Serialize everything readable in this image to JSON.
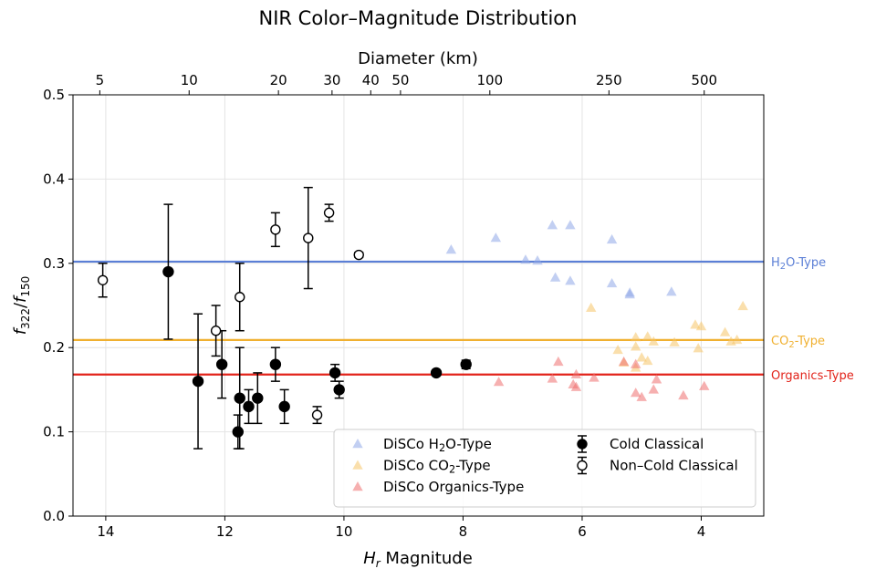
{
  "chart_data": {
    "type": "scatter",
    "title": "NIR Color–Magnitude Distribution",
    "xlabel": "H_r Magnitude",
    "xlabel_parts": {
      "main": "H",
      "sub": "r",
      "rest": " Magnitude"
    },
    "ylabel": "f_322/f_150",
    "ylabel_parts": {
      "f1": "f",
      "s1": "322",
      "slash": "/",
      "f2": "f",
      "s2": "150"
    },
    "secondary_xlabel": "Diameter (km)",
    "xlim": [
      14.55,
      2.95
    ],
    "ylim": [
      0.0,
      0.5
    ],
    "x_inverted": true,
    "grid": true,
    "legend_position": "lower right",
    "x_ticks": [
      {
        "value": 14,
        "label": "14"
      },
      {
        "value": 12,
        "label": "12"
      },
      {
        "value": 10,
        "label": "10"
      },
      {
        "value": 8,
        "label": "8"
      },
      {
        "value": 6,
        "label": "6"
      },
      {
        "value": 4,
        "label": "4"
      }
    ],
    "y_ticks": [
      {
        "value": 0.0,
        "label": "0.0"
      },
      {
        "value": 0.1,
        "label": "0.1"
      },
      {
        "value": 0.2,
        "label": "0.2"
      },
      {
        "value": 0.3,
        "label": "0.3"
      },
      {
        "value": 0.4,
        "label": "0.4"
      },
      {
        "value": 0.5,
        "label": "0.5"
      }
    ],
    "top_ticks": [
      {
        "h": 14.1,
        "label": "5"
      },
      {
        "h": 12.6,
        "label": "10"
      },
      {
        "h": 11.1,
        "label": "20"
      },
      {
        "h": 10.2,
        "label": "30"
      },
      {
        "h": 9.55,
        "label": "40"
      },
      {
        "h": 9.05,
        "label": "50"
      },
      {
        "h": 7.55,
        "label": "100"
      },
      {
        "h": 5.55,
        "label": "250"
      },
      {
        "h": 3.95,
        "label": "500"
      }
    ],
    "reference_lines": [
      {
        "name": "H2O-Type",
        "value": 0.302,
        "color": "#5b7fd6",
        "label_main": "H",
        "label_sub": "2",
        "label_rest": "O-Type"
      },
      {
        "name": "CO2-Type",
        "value": 0.209,
        "color": "#f0b030",
        "label_main": "CO",
        "label_sub": "2",
        "label_rest": "-Type"
      },
      {
        "name": "Organics-Type",
        "value": 0.168,
        "color": "#e2231a",
        "label_main": "Organics-Type",
        "label_sub": "",
        "label_rest": ""
      }
    ],
    "series": [
      {
        "name": "DiSCo H2O-Type",
        "legend_main": "DiSCo H",
        "legend_sub": "2",
        "legend_rest": "O-Type",
        "marker": "triangle",
        "color": "#8fa8e8",
        "alpha": 0.55,
        "points": [
          {
            "x": 8.2,
            "y": 0.316
          },
          {
            "x": 7.45,
            "y": 0.33
          },
          {
            "x": 6.95,
            "y": 0.304
          },
          {
            "x": 6.75,
            "y": 0.303
          },
          {
            "x": 6.5,
            "y": 0.345
          },
          {
            "x": 6.2,
            "y": 0.345
          },
          {
            "x": 6.45,
            "y": 0.283
          },
          {
            "x": 6.2,
            "y": 0.279
          },
          {
            "x": 5.5,
            "y": 0.328
          },
          {
            "x": 5.5,
            "y": 0.276
          },
          {
            "x": 5.2,
            "y": 0.265
          },
          {
            "x": 5.2,
            "y": 0.263
          },
          {
            "x": 4.5,
            "y": 0.266
          }
        ]
      },
      {
        "name": "DiSCo CO2-Type",
        "legend_main": "DiSCo CO",
        "legend_sub": "2",
        "legend_rest": "-Type",
        "marker": "triangle",
        "color": "#f5c468",
        "alpha": 0.55,
        "points": [
          {
            "x": 5.85,
            "y": 0.247
          },
          {
            "x": 5.4,
            "y": 0.197
          },
          {
            "x": 5.1,
            "y": 0.212
          },
          {
            "x": 5.1,
            "y": 0.201
          },
          {
            "x": 4.9,
            "y": 0.213
          },
          {
            "x": 4.8,
            "y": 0.207
          },
          {
            "x": 4.45,
            "y": 0.206
          },
          {
            "x": 4.1,
            "y": 0.227
          },
          {
            "x": 4.0,
            "y": 0.225
          },
          {
            "x": 4.05,
            "y": 0.199
          },
          {
            "x": 3.6,
            "y": 0.218
          },
          {
            "x": 3.5,
            "y": 0.207
          },
          {
            "x": 3.4,
            "y": 0.209
          },
          {
            "x": 3.3,
            "y": 0.249
          },
          {
            "x": 5.0,
            "y": 0.188
          },
          {
            "x": 4.9,
            "y": 0.184
          },
          {
            "x": 5.3,
            "y": 0.182
          },
          {
            "x": 5.1,
            "y": 0.176
          }
        ]
      },
      {
        "name": "DiSCo Organics-Type",
        "legend_main": "DiSCo Organics-Type",
        "legend_sub": "",
        "legend_rest": "",
        "marker": "triangle",
        "color": "#ee7070",
        "alpha": 0.55,
        "points": [
          {
            "x": 7.4,
            "y": 0.159
          },
          {
            "x": 6.5,
            "y": 0.163
          },
          {
            "x": 6.4,
            "y": 0.183
          },
          {
            "x": 6.1,
            "y": 0.168
          },
          {
            "x": 6.15,
            "y": 0.156
          },
          {
            "x": 6.1,
            "y": 0.153
          },
          {
            "x": 5.8,
            "y": 0.164
          },
          {
            "x": 5.3,
            "y": 0.183
          },
          {
            "x": 5.1,
            "y": 0.18
          },
          {
            "x": 5.1,
            "y": 0.146
          },
          {
            "x": 5.0,
            "y": 0.141
          },
          {
            "x": 4.8,
            "y": 0.15
          },
          {
            "x": 4.75,
            "y": 0.162
          },
          {
            "x": 4.3,
            "y": 0.143
          },
          {
            "x": 3.95,
            "y": 0.154
          }
        ]
      },
      {
        "name": "Cold Classical",
        "marker": "circle-filled",
        "color": "#000000",
        "points": [
          {
            "x": 12.95,
            "y": 0.29,
            "err": 0.08
          },
          {
            "x": 12.45,
            "y": 0.16,
            "err": 0.08
          },
          {
            "x": 12.05,
            "y": 0.18,
            "err": 0.04
          },
          {
            "x": 11.78,
            "y": 0.1,
            "err": 0.02
          },
          {
            "x": 11.75,
            "y": 0.14,
            "err": 0.06
          },
          {
            "x": 11.6,
            "y": 0.13,
            "err": 0.02
          },
          {
            "x": 11.45,
            "y": 0.14,
            "err": 0.03
          },
          {
            "x": 11.15,
            "y": 0.18,
            "err": 0.02
          },
          {
            "x": 11.0,
            "y": 0.13,
            "err": 0.02
          },
          {
            "x": 10.15,
            "y": 0.17,
            "err": 0.01
          },
          {
            "x": 10.08,
            "y": 0.15,
            "err": 0.01
          },
          {
            "x": 8.45,
            "y": 0.17,
            "err": 0.0
          },
          {
            "x": 7.95,
            "y": 0.18,
            "err": 0.005
          }
        ]
      },
      {
        "name": "Non–Cold Classical",
        "marker": "circle-open",
        "color": "#000000",
        "points": [
          {
            "x": 14.05,
            "y": 0.28,
            "err": 0.02
          },
          {
            "x": 12.15,
            "y": 0.22,
            "err": 0.03
          },
          {
            "x": 11.75,
            "y": 0.26,
            "err": 0.04
          },
          {
            "x": 11.15,
            "y": 0.34,
            "err": 0.02
          },
          {
            "x": 10.6,
            "y": 0.33,
            "err": 0.06
          },
          {
            "x": 10.45,
            "y": 0.12,
            "err": 0.01
          },
          {
            "x": 10.25,
            "y": 0.36,
            "err": 0.01
          },
          {
            "x": 9.75,
            "y": 0.31,
            "err": 0.003
          }
        ]
      }
    ]
  }
}
